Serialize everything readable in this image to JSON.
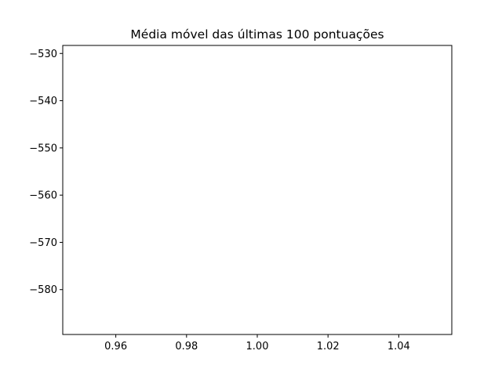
{
  "chart_data": {
    "type": "line",
    "title": "Média móvel das últimas 100 pontuações",
    "xlabel": "",
    "ylabel": "",
    "xlim": [
      0.945,
      1.055
    ],
    "ylim": [
      -589.5,
      -528.3
    ],
    "x_ticks": [
      {
        "value": 0.96,
        "label": "0.96"
      },
      {
        "value": 0.98,
        "label": "0.98"
      },
      {
        "value": 1.0,
        "label": "1.00"
      },
      {
        "value": 1.02,
        "label": "1.02"
      },
      {
        "value": 1.04,
        "label": "1.04"
      }
    ],
    "y_ticks": [
      {
        "value": -530,
        "label": "−530"
      },
      {
        "value": -540,
        "label": "−540"
      },
      {
        "value": -550,
        "label": "−550"
      },
      {
        "value": -560,
        "label": "−560"
      },
      {
        "value": -570,
        "label": "−570"
      },
      {
        "value": -580,
        "label": "−580"
      }
    ],
    "grid": false,
    "series": [
      {
        "x": [],
        "y": [],
        "color": "#1f77b4"
      }
    ]
  }
}
